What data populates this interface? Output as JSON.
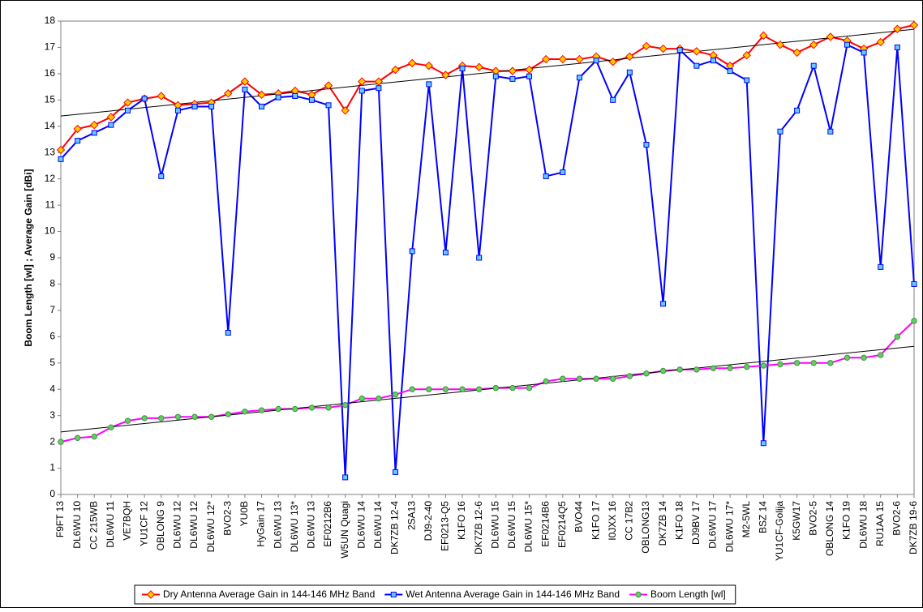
{
  "chart_data": {
    "type": "line",
    "y_label": "Boom Length [wl] ; Average Gain [dBi]",
    "categories": [
      "F9FT 13",
      "DL6WU 10",
      "CC 215WB",
      "DL6WU 11",
      "VE7BQH",
      "YU1CF 12",
      "OBLONG 9",
      "DL6WU 12",
      "DL6WU 12",
      "DL6WU 12*",
      "BVO2-3",
      "YU0B",
      "HyGain 17",
      "DL6WU 13",
      "DL6WU 13*",
      "DL6WU 13",
      "EF0212B6",
      "W5UN Quagi",
      "DL6WU 14",
      "DL6WU 14",
      "DK7ZB 12-4",
      "2SA13",
      "DJ9-2-40",
      "EF0213-Q5",
      "K1FO 16",
      "DK7ZB 12-6",
      "DL6WU 15",
      "DL6WU 15",
      "DL6WU 15*",
      "EF0214B6",
      "EF0214Q5",
      "BVO44",
      "K1FO 17",
      "I0JXX 16",
      "CC 17B2",
      "OBLONG13",
      "DK7ZB 14",
      "K1FO 18",
      "DJ9BV 17",
      "DL6WU 17",
      "DL6WU 17*",
      "M2-5WL",
      "BSZ 14",
      "YU1CF-Golija",
      "K5GW17",
      "BVO2-5",
      "OBLONG 14",
      "K1FO 19",
      "DL6WU 18",
      "RU1AA 15",
      "BVO2-6",
      "DK7ZB 19-6"
    ],
    "series": [
      {
        "name": "Dry Antenna Average Gain in 144-146 MHz Band",
        "color": "#ff0000",
        "marker": "diamond",
        "marker_color": "#ffcc00",
        "trendline": true,
        "values": [
          13.1,
          13.9,
          14.05,
          14.35,
          14.9,
          15.05,
          15.15,
          14.8,
          14.85,
          14.9,
          15.25,
          15.7,
          15.2,
          15.25,
          15.35,
          15.2,
          15.55,
          14.6,
          15.7,
          15.7,
          16.15,
          16.4,
          16.3,
          15.95,
          16.3,
          16.25,
          16.1,
          16.1,
          16.15,
          16.55,
          16.55,
          16.55,
          16.65,
          16.45,
          16.65,
          17.05,
          16.95,
          16.95,
          16.85,
          16.7,
          16.3,
          16.7,
          17.45,
          17.1,
          16.8,
          17.1,
          17.4,
          17.25,
          16.95,
          17.2,
          17.7,
          17.85
        ]
      },
      {
        "name": "Wet Antenna Average Gain in 144-146 MHz Band",
        "color": "#0000ff",
        "marker": "square",
        "marker_color": "#66ccff",
        "trendline": false,
        "values": [
          12.75,
          13.45,
          13.75,
          14.05,
          14.6,
          15.05,
          12.1,
          14.6,
          14.75,
          14.75,
          6.15,
          15.4,
          14.75,
          15.1,
          15.15,
          15.0,
          14.8,
          0.65,
          15.35,
          15.45,
          0.85,
          9.25,
          15.6,
          9.2,
          16.2,
          9.0,
          15.9,
          15.8,
          15.9,
          12.1,
          12.25,
          15.85,
          16.5,
          15.0,
          16.05,
          13.3,
          7.25,
          16.9,
          16.3,
          16.5,
          16.1,
          15.75,
          1.95,
          13.8,
          14.6,
          16.3,
          13.8,
          17.1,
          16.8,
          8.65,
          17.0,
          8.0
        ]
      },
      {
        "name": "Boom Length [wl]",
        "color": "#ff00ff",
        "marker": "circle",
        "marker_color": "#66cc66",
        "trendline": true,
        "values": [
          2.0,
          2.15,
          2.2,
          2.55,
          2.8,
          2.9,
          2.9,
          2.95,
          2.95,
          2.95,
          3.05,
          3.15,
          3.2,
          3.25,
          3.25,
          3.3,
          3.3,
          3.4,
          3.65,
          3.65,
          3.8,
          4.0,
          4.0,
          4.0,
          4.0,
          4.0,
          4.05,
          4.05,
          4.05,
          4.3,
          4.4,
          4.4,
          4.4,
          4.4,
          4.5,
          4.6,
          4.7,
          4.75,
          4.75,
          4.8,
          4.8,
          4.85,
          4.9,
          4.95,
          5.0,
          5.0,
          5.0,
          5.2,
          5.2,
          5.3,
          6.0,
          6.6
        ]
      }
    ],
    "ylim": [
      0,
      18
    ],
    "yticks": [
      0,
      1,
      2,
      3,
      4,
      5,
      6,
      7,
      8,
      9,
      10,
      11,
      12,
      13,
      14,
      15,
      16,
      17,
      18
    ],
    "grid": false,
    "legend": "bottom"
  }
}
